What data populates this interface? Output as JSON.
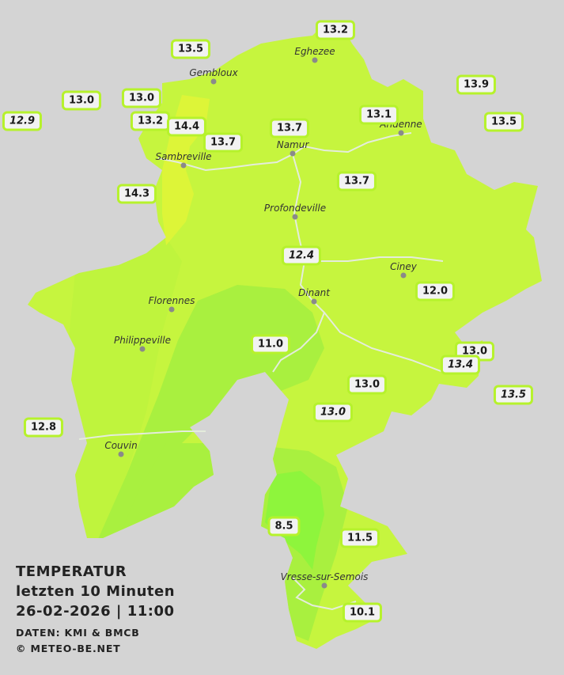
{
  "legend": {
    "title": "TEMPERATUR",
    "subtitle": "letzten 10 Minuten",
    "datetime": "26-02-2026  |  11:00",
    "source": "DATEN: KMI & BMCB",
    "copyright": "© METEO-BE.NET"
  },
  "colors": {
    "background": "#d4d4d4",
    "zone_warm": "#ddf538",
    "zone_mild": "#c6f53e",
    "zone_cool": "#a9f03f",
    "zone_cold": "#8ef53c",
    "river": "#e4ecdc",
    "badge_border": "#b6f22c"
  },
  "cities": [
    {
      "name": "Eghezee"
    },
    {
      "name": "Gembloux"
    },
    {
      "name": "Andenne"
    },
    {
      "name": "Namur"
    },
    {
      "name": "Sambreville"
    },
    {
      "name": "Profondeville"
    },
    {
      "name": "Ciney"
    },
    {
      "name": "Dinant"
    },
    {
      "name": "Florennes"
    },
    {
      "name": "Philippeville"
    },
    {
      "name": "Couvin"
    },
    {
      "name": "Vresse-sur-Semois"
    }
  ],
  "stations": [
    {
      "value": "13.2",
      "italic": false
    },
    {
      "value": "13.5",
      "italic": false
    },
    {
      "value": "13.9",
      "italic": false
    },
    {
      "value": "13.0",
      "italic": false
    },
    {
      "value": "13.0",
      "italic": false
    },
    {
      "value": "12.9",
      "italic": true
    },
    {
      "value": "13.2",
      "italic": false
    },
    {
      "value": "14.4",
      "italic": false
    },
    {
      "value": "13.7",
      "italic": false
    },
    {
      "value": "13.7",
      "italic": false
    },
    {
      "value": "13.1",
      "italic": false
    },
    {
      "value": "13.5",
      "italic": false
    },
    {
      "value": "14.3",
      "italic": false
    },
    {
      "value": "13.7",
      "italic": false
    },
    {
      "value": "12.4",
      "italic": true
    },
    {
      "value": "12.0",
      "italic": false
    },
    {
      "value": "11.0",
      "italic": false
    },
    {
      "value": "13.0",
      "italic": false
    },
    {
      "value": "13.4",
      "italic": true
    },
    {
      "value": "13.0",
      "italic": false
    },
    {
      "value": "13.5",
      "italic": true
    },
    {
      "value": "13.0",
      "italic": true
    },
    {
      "value": "12.8",
      "italic": false
    },
    {
      "value": "8.5",
      "italic": false
    },
    {
      "value": "11.5",
      "italic": false
    },
    {
      "value": "10.1",
      "italic": false
    }
  ]
}
